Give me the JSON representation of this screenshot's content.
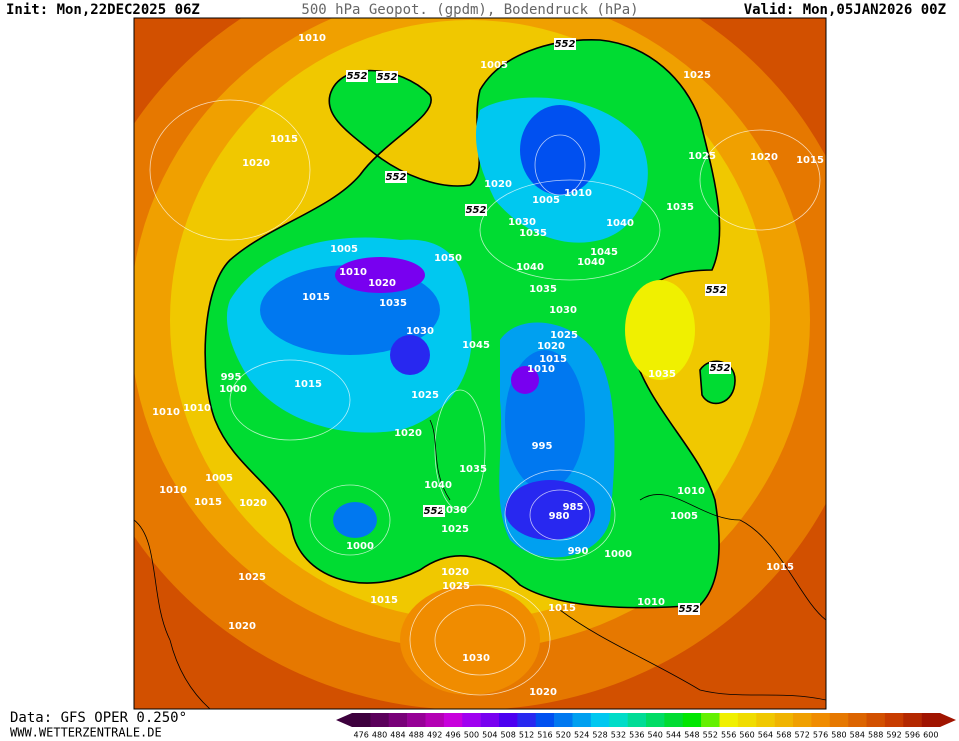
{
  "header": {
    "init": "Init: Mon,22DEC2025 06Z",
    "title": "500 hPa Geopot. (gpdm), Bodendruck (hPa)",
    "valid": "Valid: Mon,05JAN2026 00Z"
  },
  "footer": {
    "data": "Data: GFS OPER 0.250°",
    "site": "WWW.WETTERZENTRALE.DE"
  },
  "map": {
    "contour_labels": [
      "552",
      "552",
      "552",
      "552",
      "552",
      "552",
      "552",
      "552",
      "552"
    ],
    "isobar_labels": [
      "1010",
      "1005",
      "1025",
      "1015",
      "1020",
      "1025",
      "1020",
      "1015",
      "1020",
      "1010",
      "1005",
      "1030",
      "1035",
      "1040",
      "1035",
      "1045",
      "1040",
      "1040",
      "1005",
      "1050",
      "1010",
      "1020",
      "1015",
      "1035",
      "1035",
      "1030",
      "1030",
      "1025",
      "1020",
      "1045",
      "1015",
      "1010",
      "1035",
      "995",
      "1000",
      "1015",
      "1025",
      "1010",
      "1010",
      "1020",
      "995",
      "1035",
      "1005",
      "1010",
      "1015",
      "1020",
      "1040",
      "1010",
      "1030",
      "985",
      "980",
      "1005",
      "1025",
      "990",
      "1000",
      "1000",
      "1015",
      "1020",
      "1025",
      "1025",
      "1015",
      "1010",
      "1015",
      "1020",
      "1030",
      "1020"
    ]
  },
  "legend": {
    "labels": [
      "476",
      "480",
      "484",
      "488",
      "492",
      "496",
      "500",
      "504",
      "508",
      "512",
      "516",
      "520",
      "524",
      "528",
      "532",
      "536",
      "540",
      "544",
      "548",
      "552",
      "556",
      "560",
      "564",
      "568",
      "572",
      "576",
      "580",
      "584",
      "588",
      "592",
      "596",
      "600"
    ],
    "colors": [
      "#3d003d",
      "#5a005a",
      "#780078",
      "#960096",
      "#b400b4",
      "#c800dc",
      "#a000f0",
      "#7800f0",
      "#4b00f0",
      "#2828f0",
      "#0050f0",
      "#0078f0",
      "#00a0f0",
      "#00c8f0",
      "#00dcc8",
      "#00dc96",
      "#00dc64",
      "#00dc32",
      "#00e600",
      "#64f000",
      "#f0f000",
      "#f0dc00",
      "#f0c800",
      "#f0b400",
      "#f0a000",
      "#f08c00",
      "#e67800",
      "#dc6400",
      "#d25000",
      "#c83c00",
      "#b42800",
      "#a01400"
    ]
  }
}
